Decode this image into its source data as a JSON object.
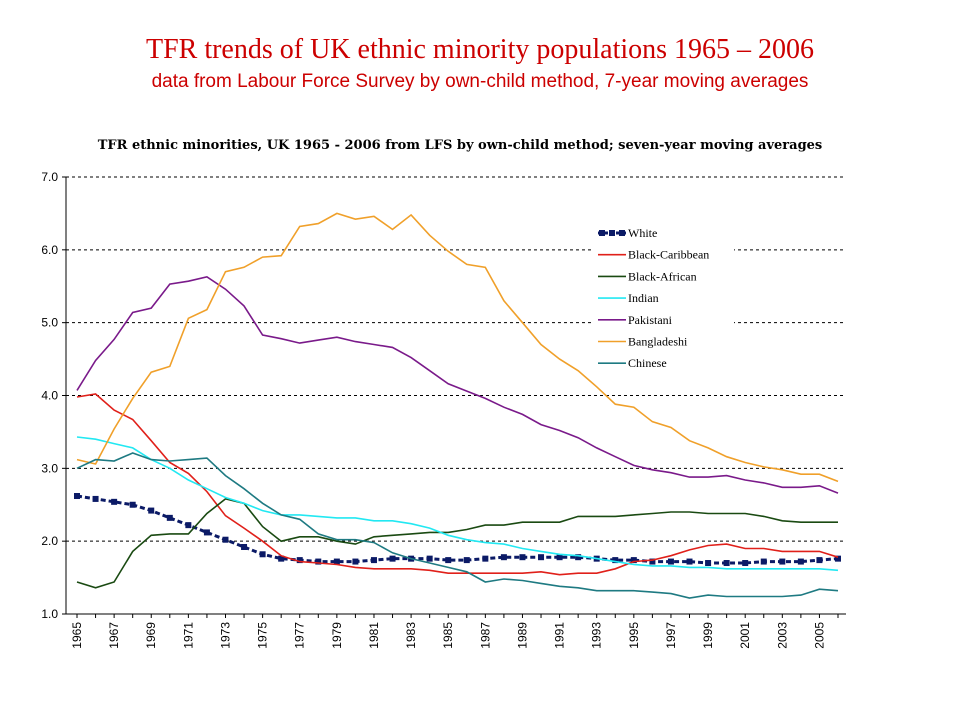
{
  "slide": {
    "title": "TFR trends of UK ethnic minority populations 1965 – 2006",
    "subtitle": "data from Labour Force Survey by own-child method, 7-year moving averages"
  },
  "colors": {
    "White": "#0b1a66",
    "Black-Caribbean": "#e0201a",
    "Black-African": "#1a4a12",
    "Indian": "#22e8f2",
    "Pakistani": "#7a1a8a",
    "Bangladeshi": "#f0a02a",
    "Chinese": "#1e7a82"
  },
  "chart_data": {
    "type": "line",
    "title": "TFR ethnic minorities, UK 1965 - 2006 from LFS by own-child method; seven-year moving averages",
    "xlabel": "",
    "ylabel": "",
    "ylim": [
      1.0,
      7.0
    ],
    "yticks": [
      "1.0",
      "2.0",
      "3.0",
      "4.0",
      "5.0",
      "6.0",
      "7.0"
    ],
    "grid": "horizontal-dashed",
    "legend": "top-right",
    "x": [
      1965,
      1966,
      1967,
      1968,
      1969,
      1970,
      1971,
      1972,
      1973,
      1974,
      1975,
      1976,
      1977,
      1978,
      1979,
      1980,
      1981,
      1982,
      1983,
      1984,
      1985,
      1986,
      1987,
      1988,
      1989,
      1990,
      1991,
      1992,
      1993,
      1994,
      1995,
      1996,
      1997,
      1998,
      1999,
      2000,
      2001,
      2002,
      2003,
      2004,
      2005,
      2006
    ],
    "xtick_labels": [
      "1965",
      "1967",
      "1969",
      "1971",
      "1973",
      "1975",
      "1977",
      "1979",
      "1981",
      "1983",
      "1985",
      "1987",
      "1989",
      "1991",
      "1993",
      "1995",
      "1997",
      "1999",
      "2001",
      "2003",
      "2005"
    ],
    "series": [
      {
        "name": "White",
        "values": [
          2.62,
          2.58,
          2.54,
          2.5,
          2.42,
          2.32,
          2.22,
          2.12,
          2.02,
          1.92,
          1.82,
          1.76,
          1.74,
          1.72,
          1.72,
          1.72,
          1.74,
          1.76,
          1.76,
          1.76,
          1.74,
          1.74,
          1.76,
          1.78,
          1.78,
          1.78,
          1.78,
          1.78,
          1.76,
          1.74,
          1.74,
          1.72,
          1.72,
          1.72,
          1.7,
          1.7,
          1.7,
          1.72,
          1.72,
          1.72,
          1.74,
          1.76
        ]
      },
      {
        "name": "Black-Caribbean",
        "values": [
          3.98,
          4.02,
          3.8,
          3.67,
          3.38,
          3.08,
          2.93,
          2.68,
          2.35,
          2.18,
          2.0,
          1.8,
          1.72,
          1.7,
          1.68,
          1.64,
          1.62,
          1.62,
          1.62,
          1.6,
          1.56,
          1.56,
          1.56,
          1.56,
          1.56,
          1.58,
          1.54,
          1.56,
          1.56,
          1.62,
          1.72,
          1.74,
          1.8,
          1.88,
          1.94,
          1.96,
          1.9,
          1.9,
          1.86,
          1.86,
          1.86,
          1.78
        ]
      },
      {
        "name": "Black-African",
        "values": [
          1.44,
          1.36,
          1.44,
          1.86,
          2.08,
          2.1,
          2.1,
          2.38,
          2.58,
          2.52,
          2.2,
          2.0,
          2.06,
          2.06,
          2.0,
          1.96,
          2.06,
          2.08,
          2.1,
          2.12,
          2.12,
          2.16,
          2.22,
          2.22,
          2.26,
          2.26,
          2.26,
          2.34,
          2.34,
          2.34,
          2.36,
          2.38,
          2.4,
          2.4,
          2.38,
          2.38,
          2.38,
          2.34,
          2.28,
          2.26,
          2.26,
          2.26
        ]
      },
      {
        "name": "Indian",
        "values": [
          3.43,
          3.4,
          3.34,
          3.28,
          3.12,
          3.0,
          2.84,
          2.72,
          2.6,
          2.52,
          2.42,
          2.36,
          2.36,
          2.34,
          2.32,
          2.32,
          2.28,
          2.28,
          2.24,
          2.18,
          2.08,
          2.02,
          1.98,
          1.96,
          1.9,
          1.86,
          1.82,
          1.8,
          1.76,
          1.72,
          1.68,
          1.66,
          1.66,
          1.64,
          1.64,
          1.62,
          1.62,
          1.62,
          1.62,
          1.62,
          1.62,
          1.6
        ]
      },
      {
        "name": "Pakistani",
        "values": [
          4.07,
          4.48,
          4.77,
          5.14,
          5.2,
          5.53,
          5.57,
          5.63,
          5.46,
          5.23,
          4.83,
          4.78,
          4.72,
          4.76,
          4.8,
          4.74,
          4.7,
          4.66,
          4.52,
          4.34,
          4.16,
          4.06,
          3.96,
          3.84,
          3.74,
          3.6,
          3.52,
          3.42,
          3.28,
          3.16,
          3.04,
          2.98,
          2.94,
          2.88,
          2.88,
          2.9,
          2.84,
          2.8,
          2.74,
          2.74,
          2.76,
          2.66
        ]
      },
      {
        "name": "Bangladeshi",
        "values": [
          3.12,
          3.06,
          3.54,
          3.96,
          4.32,
          4.4,
          5.06,
          5.18,
          5.7,
          5.76,
          5.9,
          5.92,
          6.32,
          6.36,
          6.5,
          6.42,
          6.46,
          6.28,
          6.48,
          6.2,
          5.98,
          5.8,
          5.76,
          5.3,
          5.0,
          4.7,
          4.5,
          4.34,
          4.12,
          3.88,
          3.84,
          3.64,
          3.56,
          3.38,
          3.28,
          3.16,
          3.08,
          3.02,
          2.98,
          2.92,
          2.92,
          2.82
        ]
      },
      {
        "name": "Chinese",
        "values": [
          3.0,
          3.12,
          3.1,
          3.21,
          3.12,
          3.1,
          3.12,
          3.14,
          2.9,
          2.72,
          2.52,
          2.36,
          2.3,
          2.1,
          2.02,
          2.02,
          1.98,
          1.84,
          1.76,
          1.7,
          1.64,
          1.58,
          1.44,
          1.48,
          1.46,
          1.42,
          1.38,
          1.36,
          1.32,
          1.32,
          1.32,
          1.3,
          1.28,
          1.22,
          1.26,
          1.24,
          1.24,
          1.24,
          1.24,
          1.26,
          1.34,
          1.32
        ]
      }
    ]
  }
}
